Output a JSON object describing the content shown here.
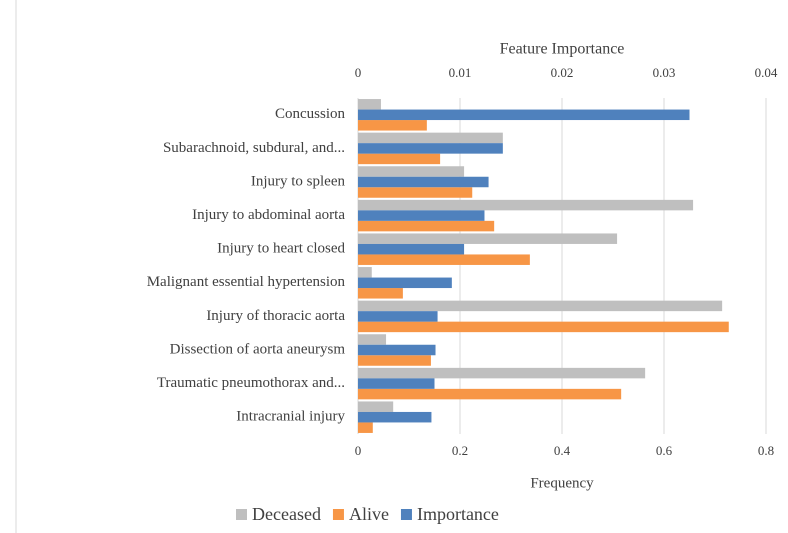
{
  "chart_data": {
    "type": "bar",
    "orientation": "horizontal",
    "xlabel": "Frequency",
    "x2label": "Feature Importance",
    "categories": [
      "Concussion",
      "Subarachnoid, subdural, and...",
      "Injury to spleen",
      "Injury to abdominal aorta",
      "Injury to heart closed",
      "Malignant  essential hypertension",
      "Injury of thoracic aorta",
      "Dissection of aorta aneurysm",
      "Traumatic pneumothorax and...",
      "Intracranial injury"
    ],
    "series": [
      {
        "name": "Deceased",
        "color": "#bfbfbf",
        "values": [
          0.045,
          0.284,
          0.208,
          0.657,
          0.508,
          0.027,
          0.714,
          0.055,
          0.563,
          0.069
        ]
      },
      {
        "name": "Alive",
        "color": "#f79646",
        "values": [
          0.135,
          0.161,
          0.224,
          0.267,
          0.337,
          0.088,
          0.727,
          0.143,
          0.516,
          0.029
        ]
      },
      {
        "name": "Importance",
        "color": "#4f81bd",
        "axis": "x2",
        "values": [
          0.0325,
          0.0142,
          0.0128,
          0.0124,
          0.0104,
          0.0092,
          0.0078,
          0.0076,
          0.0075,
          0.0072
        ]
      }
    ],
    "xlim": [
      0,
      0.8
    ],
    "xticks": [
      0,
      0.2,
      0.4,
      0.6,
      0.8
    ],
    "x2lim": [
      0,
      0.04
    ],
    "x2ticks": [
      0,
      0.01,
      0.02,
      0.03,
      0.04
    ],
    "grid": true,
    "legend": "bottom"
  }
}
